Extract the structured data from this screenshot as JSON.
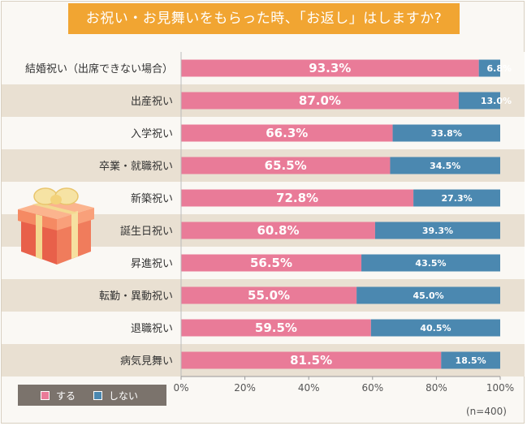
{
  "title": "お祝い・お見舞いをもらった時、「お返し」はしますか?",
  "note": "(n=400)",
  "colors": {
    "yes": "#e97b98",
    "no": "#4b88b0",
    "title_bg": "#f1a532",
    "row_alt": "#e9e0d2",
    "legend_bg": "#7b736c"
  },
  "legend": {
    "yes_label": "する",
    "no_label": "しない"
  },
  "chart_data": {
    "type": "bar",
    "orientation": "horizontal",
    "stacked": true,
    "categories": [
      "結婚祝い（出席できない場合）",
      "出産祝い",
      "入学祝い",
      "卒業・就職祝い",
      "新築祝い",
      "誕生日祝い",
      "昇進祝い",
      "転勤・異動祝い",
      "退職祝い",
      "病気見舞い"
    ],
    "series": [
      {
        "name": "する",
        "values": [
          93.3,
          87.0,
          66.3,
          65.5,
          72.8,
          60.8,
          56.5,
          55.0,
          59.5,
          81.5
        ],
        "labels": [
          "93.3%",
          "87.0%",
          "66.3%",
          "65.5%",
          "72.8%",
          "60.8%",
          "56.5%",
          "55.0%",
          "59.5%",
          "81.5%"
        ]
      },
      {
        "name": "しない",
        "values": [
          6.8,
          13.0,
          33.8,
          34.5,
          27.3,
          39.3,
          43.5,
          45.0,
          40.5,
          18.5
        ],
        "labels": [
          "6.8%",
          "13.0%",
          "33.8%",
          "34.5%",
          "27.3%",
          "39.3%",
          "43.5%",
          "45.0%",
          "40.5%",
          "18.5%"
        ]
      }
    ],
    "x_ticks": [
      "0%",
      "20%",
      "40%",
      "60%",
      "80%",
      "100%"
    ],
    "xlim": [
      0,
      100
    ],
    "legend_position": "bottom-left"
  }
}
